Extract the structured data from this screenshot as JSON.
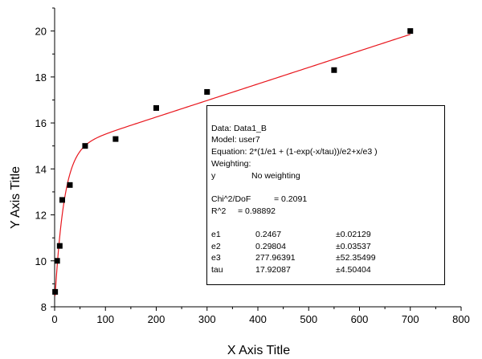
{
  "chart_data": {
    "type": "scatter",
    "xlabel": "X Axis Title",
    "ylabel": "Y Axis Title",
    "xlim": [
      0,
      800
    ],
    "ylim": [
      8,
      21
    ],
    "x_ticks": [
      0,
      100,
      200,
      300,
      400,
      500,
      600,
      700,
      800
    ],
    "y_ticks": [
      8,
      10,
      12,
      14,
      16,
      18,
      20
    ],
    "grid": false,
    "series": [
      {
        "kind": "points",
        "marker": "square",
        "color": "#000000",
        "x": [
          1,
          5,
          10,
          15,
          30,
          60,
          120,
          200,
          300,
          550,
          700
        ],
        "y": [
          8.65,
          10.0,
          10.65,
          12.65,
          13.3,
          15.0,
          15.3,
          16.65,
          17.35,
          18.3,
          20.0
        ]
      },
      {
        "kind": "fit-line",
        "color": "#e8161d",
        "model": "user7",
        "params": {
          "e1": 0.2467,
          "e2": 0.29804,
          "e3": 277.96391,
          "tau": 17.92087
        }
      }
    ],
    "annotation": {
      "data_line": "Data: Data1_B",
      "model_line": "Model: user7",
      "equation_line": "Equation: 2*(1/e1 + (1-exp(-x/tau))/e2+x/e3 )",
      "weighting_line": "Weighting:",
      "weight_var": "y",
      "weight_value": "No weighting",
      "chi_label": "Chi^2/DoF",
      "chi_value": "= 0.2091",
      "r2_label": "R^2",
      "r2_value": "=  0.98892",
      "params": [
        {
          "name": "e1",
          "value": "0.2467",
          "error": "±0.02129"
        },
        {
          "name": "e2",
          "value": "0.29804",
          "error": "±0.03537"
        },
        {
          "name": "e3",
          "value": "277.96391",
          "error": "±52.35499"
        },
        {
          "name": "tau",
          "value": "17.92087",
          "error": "±4.50404"
        }
      ]
    }
  }
}
